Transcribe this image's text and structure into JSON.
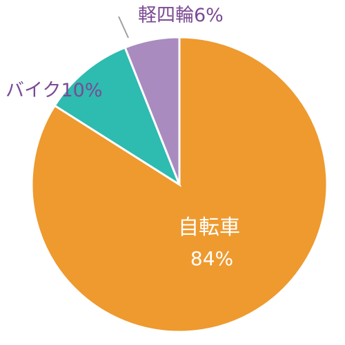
{
  "chart_data": {
    "type": "pie",
    "slices": [
      {
        "label": "自転車",
        "value": 84,
        "display": "84%",
        "color": "#ee9a2f",
        "label_color": "#ffffff"
      },
      {
        "label": "バイク",
        "value": 10,
        "display": "10%",
        "color": "#2ebbb0",
        "label_color": "#7b4a94"
      },
      {
        "label": "軽四輪",
        "value": 6,
        "display": "6%",
        "color": "#a98bc0",
        "label_color": "#7b4a94"
      }
    ]
  }
}
